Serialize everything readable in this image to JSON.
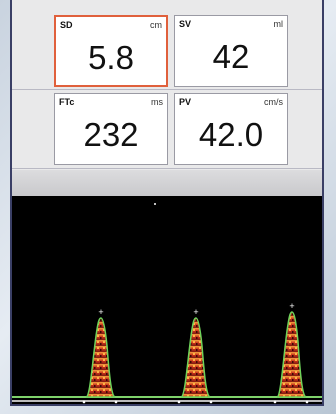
{
  "parameters": [
    {
      "label": "SD",
      "unit": "cm",
      "value": "5.8"
    },
    {
      "label": "SV",
      "unit": "ml",
      "value": "42"
    },
    {
      "label": "FTc",
      "unit": "ms",
      "value": "232"
    },
    {
      "label": "PV",
      "unit": "cm/s",
      "value": "42.0"
    }
  ]
}
